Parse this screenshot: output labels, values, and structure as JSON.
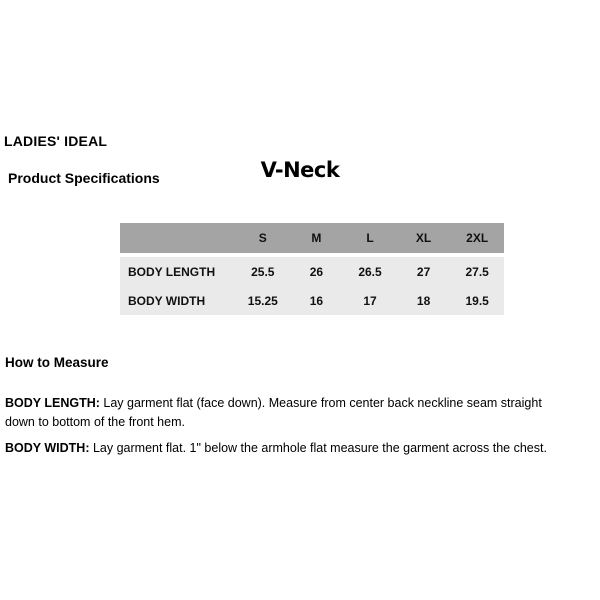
{
  "header": {
    "brand": "LADIES' IDEAL",
    "product_title": "V-Neck",
    "section_title": "Product Specifications"
  },
  "chart_data": {
    "type": "table",
    "columns": [
      "",
      "S",
      "M",
      "L",
      "XL",
      "2XL"
    ],
    "rows": [
      {
        "label": "BODY LENGTH",
        "values": [
          "25.5",
          "26",
          "26.5",
          "27",
          "27.5"
        ]
      },
      {
        "label": "BODY WIDTH",
        "values": [
          "15.25",
          "16",
          "17",
          "18",
          "19.5"
        ]
      }
    ]
  },
  "how_to_measure": {
    "title": "How to Measure",
    "instructions": [
      {
        "label": "BODY LENGTH:",
        "text": " Lay garment flat (face down). Measure from center back neckline seam straight down to bottom of the front hem."
      },
      {
        "label": "BODY WIDTH:",
        "text": " Lay garment flat. 1\" below the armhole flat measure the garment across the chest."
      }
    ]
  },
  "colors": {
    "table_header_bg": "#a5a4a4",
    "table_body_bg": "#eaeaea",
    "text": "#000000"
  }
}
